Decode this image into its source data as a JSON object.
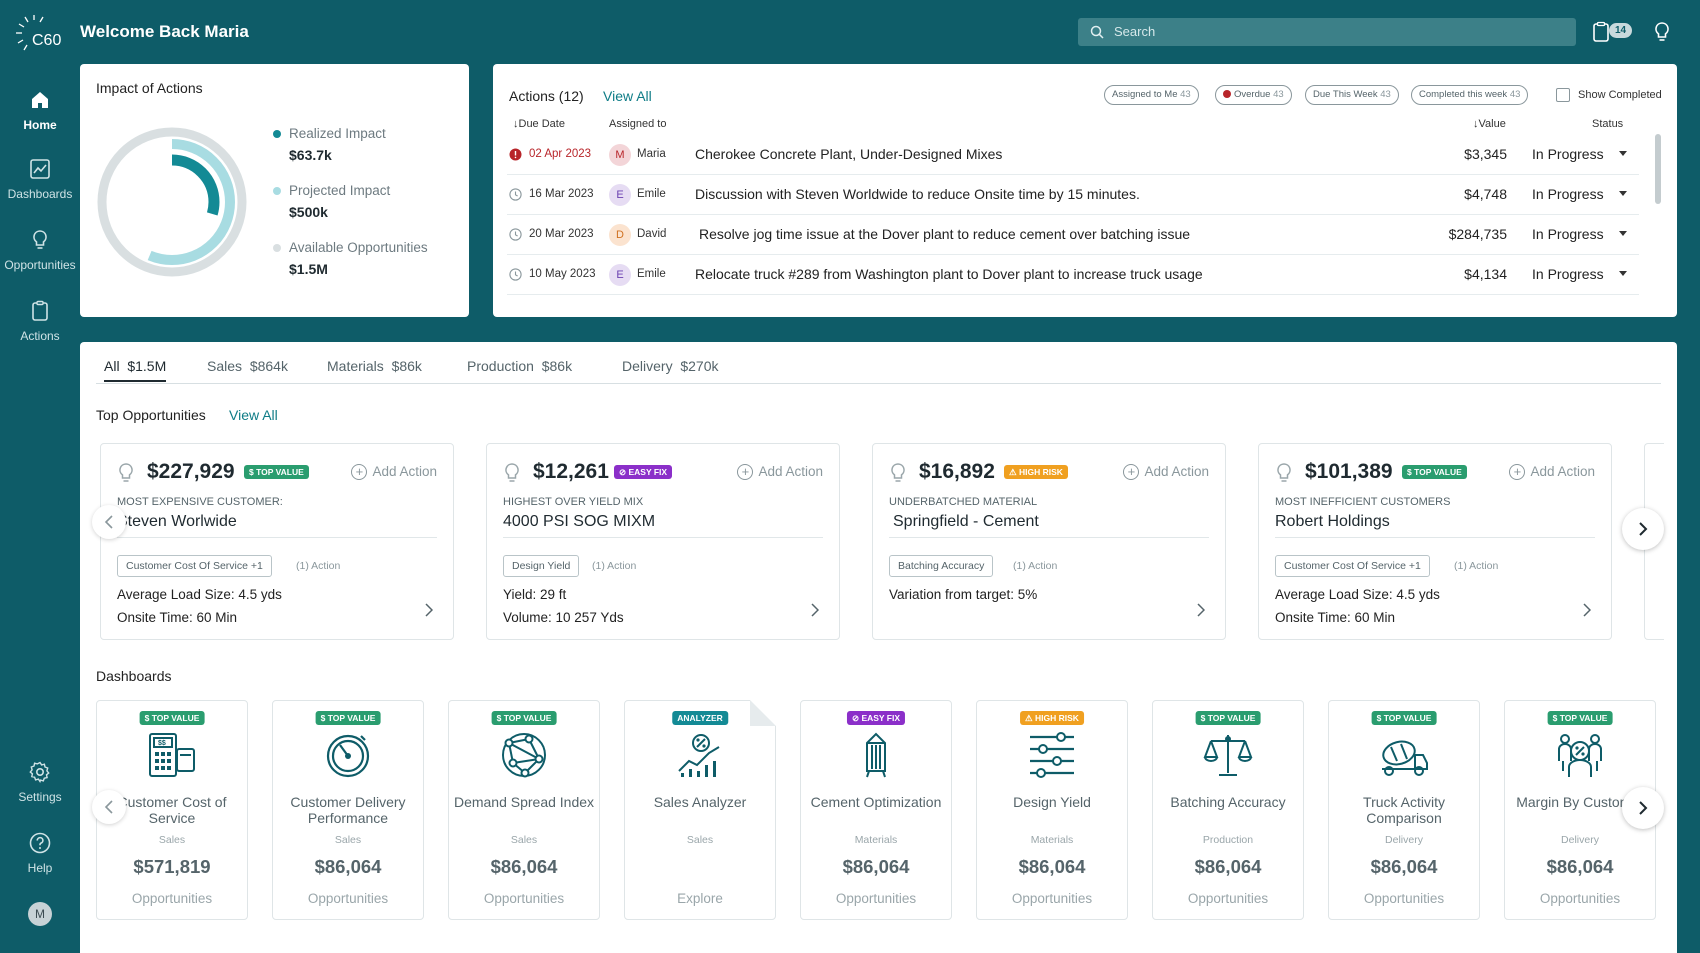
{
  "header": {
    "welcome": "Welcome Back Maria",
    "search_placeholder": "Search",
    "notifications": "14"
  },
  "sidebar": {
    "logo": "C60",
    "items": [
      {
        "label": "Home",
        "icon": "home-icon"
      },
      {
        "label": "Dashboards",
        "icon": "chart-icon"
      },
      {
        "label": "Opportunities",
        "icon": "bulb-icon"
      },
      {
        "label": "Actions",
        "icon": "clipboard-icon"
      }
    ],
    "bottom": [
      {
        "label": "Settings",
        "icon": "gear-icon"
      },
      {
        "label": "Help",
        "icon": "help-icon"
      }
    ],
    "avatar": "M"
  },
  "impact": {
    "title": "Impact of Actions",
    "items": [
      {
        "label": "Realized Impact",
        "value": "$63.7k",
        "color": "#138a95"
      },
      {
        "label": "Projected Impact",
        "value": "$500k",
        "color": "#a8dce2"
      },
      {
        "label": "Available Opportunities",
        "value": "$1.5M",
        "color": "#d9dfe1"
      }
    ]
  },
  "actions": {
    "title": "Actions (12)",
    "view_all": "View All",
    "filters": [
      {
        "label": "Assigned to Me",
        "count": "43"
      },
      {
        "label": "Overdue",
        "count": "43"
      },
      {
        "label": "Due This Week",
        "count": "43"
      },
      {
        "label": "Completed this week",
        "count": "43"
      }
    ],
    "show_completed": "Show Completed",
    "columns": {
      "due": "Due Date",
      "assigned": "Assigned to",
      "value": "Value",
      "status": "Status"
    },
    "rows": [
      {
        "due": "02 Apr 2023",
        "overdue": true,
        "initial": "M",
        "who": "Maria",
        "desc": "Cherokee Concrete Plant, Under-Designed Mixes",
        "value": "$3,345",
        "status": "In Progress"
      },
      {
        "due": "16 Mar 2023",
        "overdue": false,
        "initial": "E",
        "who": "Emile",
        "desc": "Discussion with Steven Worldwide to reduce Onsite time by 15 minutes.",
        "value": "$4,748",
        "status": "In Progress"
      },
      {
        "due": "20 Mar 2023",
        "overdue": false,
        "initial": "D",
        "who": "David",
        "desc": "Resolve jog time issue at the Dover plant to reduce cement over batching issue",
        "value": "$284,735",
        "status": "In Progress"
      },
      {
        "due": "10 May 2023",
        "overdue": false,
        "initial": "E",
        "who": "Emile",
        "desc": "Relocate truck #289 from Washington plant to Dover plant to increase truck usage",
        "value": "$4,134",
        "status": "In Progress"
      }
    ]
  },
  "tabs": [
    {
      "label": "All",
      "amount": "$1.5M"
    },
    {
      "label": "Sales",
      "amount": "$864k"
    },
    {
      "label": "Materials",
      "amount": "$86k"
    },
    {
      "label": "Production",
      "amount": "$86k"
    },
    {
      "label": "Delivery",
      "amount": "$270k"
    }
  ],
  "opportunities": {
    "title": "Top Opportunities",
    "view_all": "View All",
    "add_action": "Add Action",
    "cards": [
      {
        "amount": "$227,929",
        "badge": "$ TOP VALUE",
        "category": "MOST EXPENSIVE CUSTOMER:",
        "name": "Steven Worlwide",
        "tag": "Customer Cost Of Service +1",
        "tag_action": "(1) Action",
        "metric1": "Average Load Size:  4.5 yds",
        "metric2": "Onsite Time:  60 Min"
      },
      {
        "amount": "$12,261",
        "badge": "⊘ EASY FIX",
        "category": "HIGHEST OVER YIELD MIX",
        "name": "4000 PSI SOG MIXM",
        "tag": "Design Yield",
        "tag_action": "(1) Action",
        "metric1": "Yield:  29 ft",
        "metric2": "Volume:  10 257 Yds"
      },
      {
        "amount": "$16,892",
        "badge": "⚠ HIGH RISK",
        "category": "UNDERBATCHED MATERIAL",
        "name": "Springfield - Cement",
        "tag": "Batching Accuracy",
        "tag_action": "(1) Action",
        "metric1": "Variation from target:  5%",
        "metric2": ""
      },
      {
        "amount": "$101,389",
        "badge": "$ TOP VALUE",
        "category": "MOST INEFFICIENT CUSTOMERS",
        "name": "Robert Holdings",
        "tag": "Customer Cost Of Service +1",
        "tag_action": "(1) Action",
        "metric1": "Average Load Size:  4.5 yds",
        "metric2": "Onsite Time:  60 Min"
      }
    ]
  },
  "dashboards": {
    "title": "Dashboards",
    "cards": [
      {
        "badge": "$ TOP VALUE",
        "icon": "calculator-icon",
        "name": "Customer Cost of Service",
        "category": "Sales",
        "value": "$571,819",
        "footer": "Opportunities"
      },
      {
        "badge": "$ TOP VALUE",
        "icon": "timer-icon",
        "name": "Customer Delivery Performance",
        "category": "Sales",
        "value": "$86,064",
        "footer": "Opportunities"
      },
      {
        "badge": "$ TOP VALUE",
        "icon": "globe-network-icon",
        "name": "Demand Spread Index",
        "category": "Sales",
        "value": "$86,064",
        "footer": "Opportunities"
      },
      {
        "badge": "ANALYZER",
        "icon": "analyzer-chart-icon",
        "name": "Sales Analyzer",
        "category": "Sales",
        "value": "",
        "footer": "Explore"
      },
      {
        "badge": "⊘ EASY FIX",
        "icon": "silo-icon",
        "name": "Cement Optimization",
        "category": "Materials",
        "value": "$86,064",
        "footer": "Opportunities"
      },
      {
        "badge": "⚠ HIGH RISK",
        "icon": "sliders-icon",
        "name": "Design Yield",
        "category": "Materials",
        "value": "$86,064",
        "footer": "Opportunities"
      },
      {
        "badge": "$ TOP VALUE",
        "icon": "scale-icon",
        "name": "Batching Accuracy",
        "category": "Production",
        "value": "$86,064",
        "footer": "Opportunities"
      },
      {
        "badge": "$ TOP VALUE",
        "icon": "mixer-truck-icon",
        "name": "Truck Activity Comparison",
        "category": "Delivery",
        "value": "$86,064",
        "footer": "Opportunities"
      },
      {
        "badge": "$ TOP VALUE",
        "icon": "people-percent-icon",
        "name": "Margin By Customer",
        "category": "Delivery",
        "value": "$86,064",
        "footer": "Opportunities"
      }
    ]
  }
}
